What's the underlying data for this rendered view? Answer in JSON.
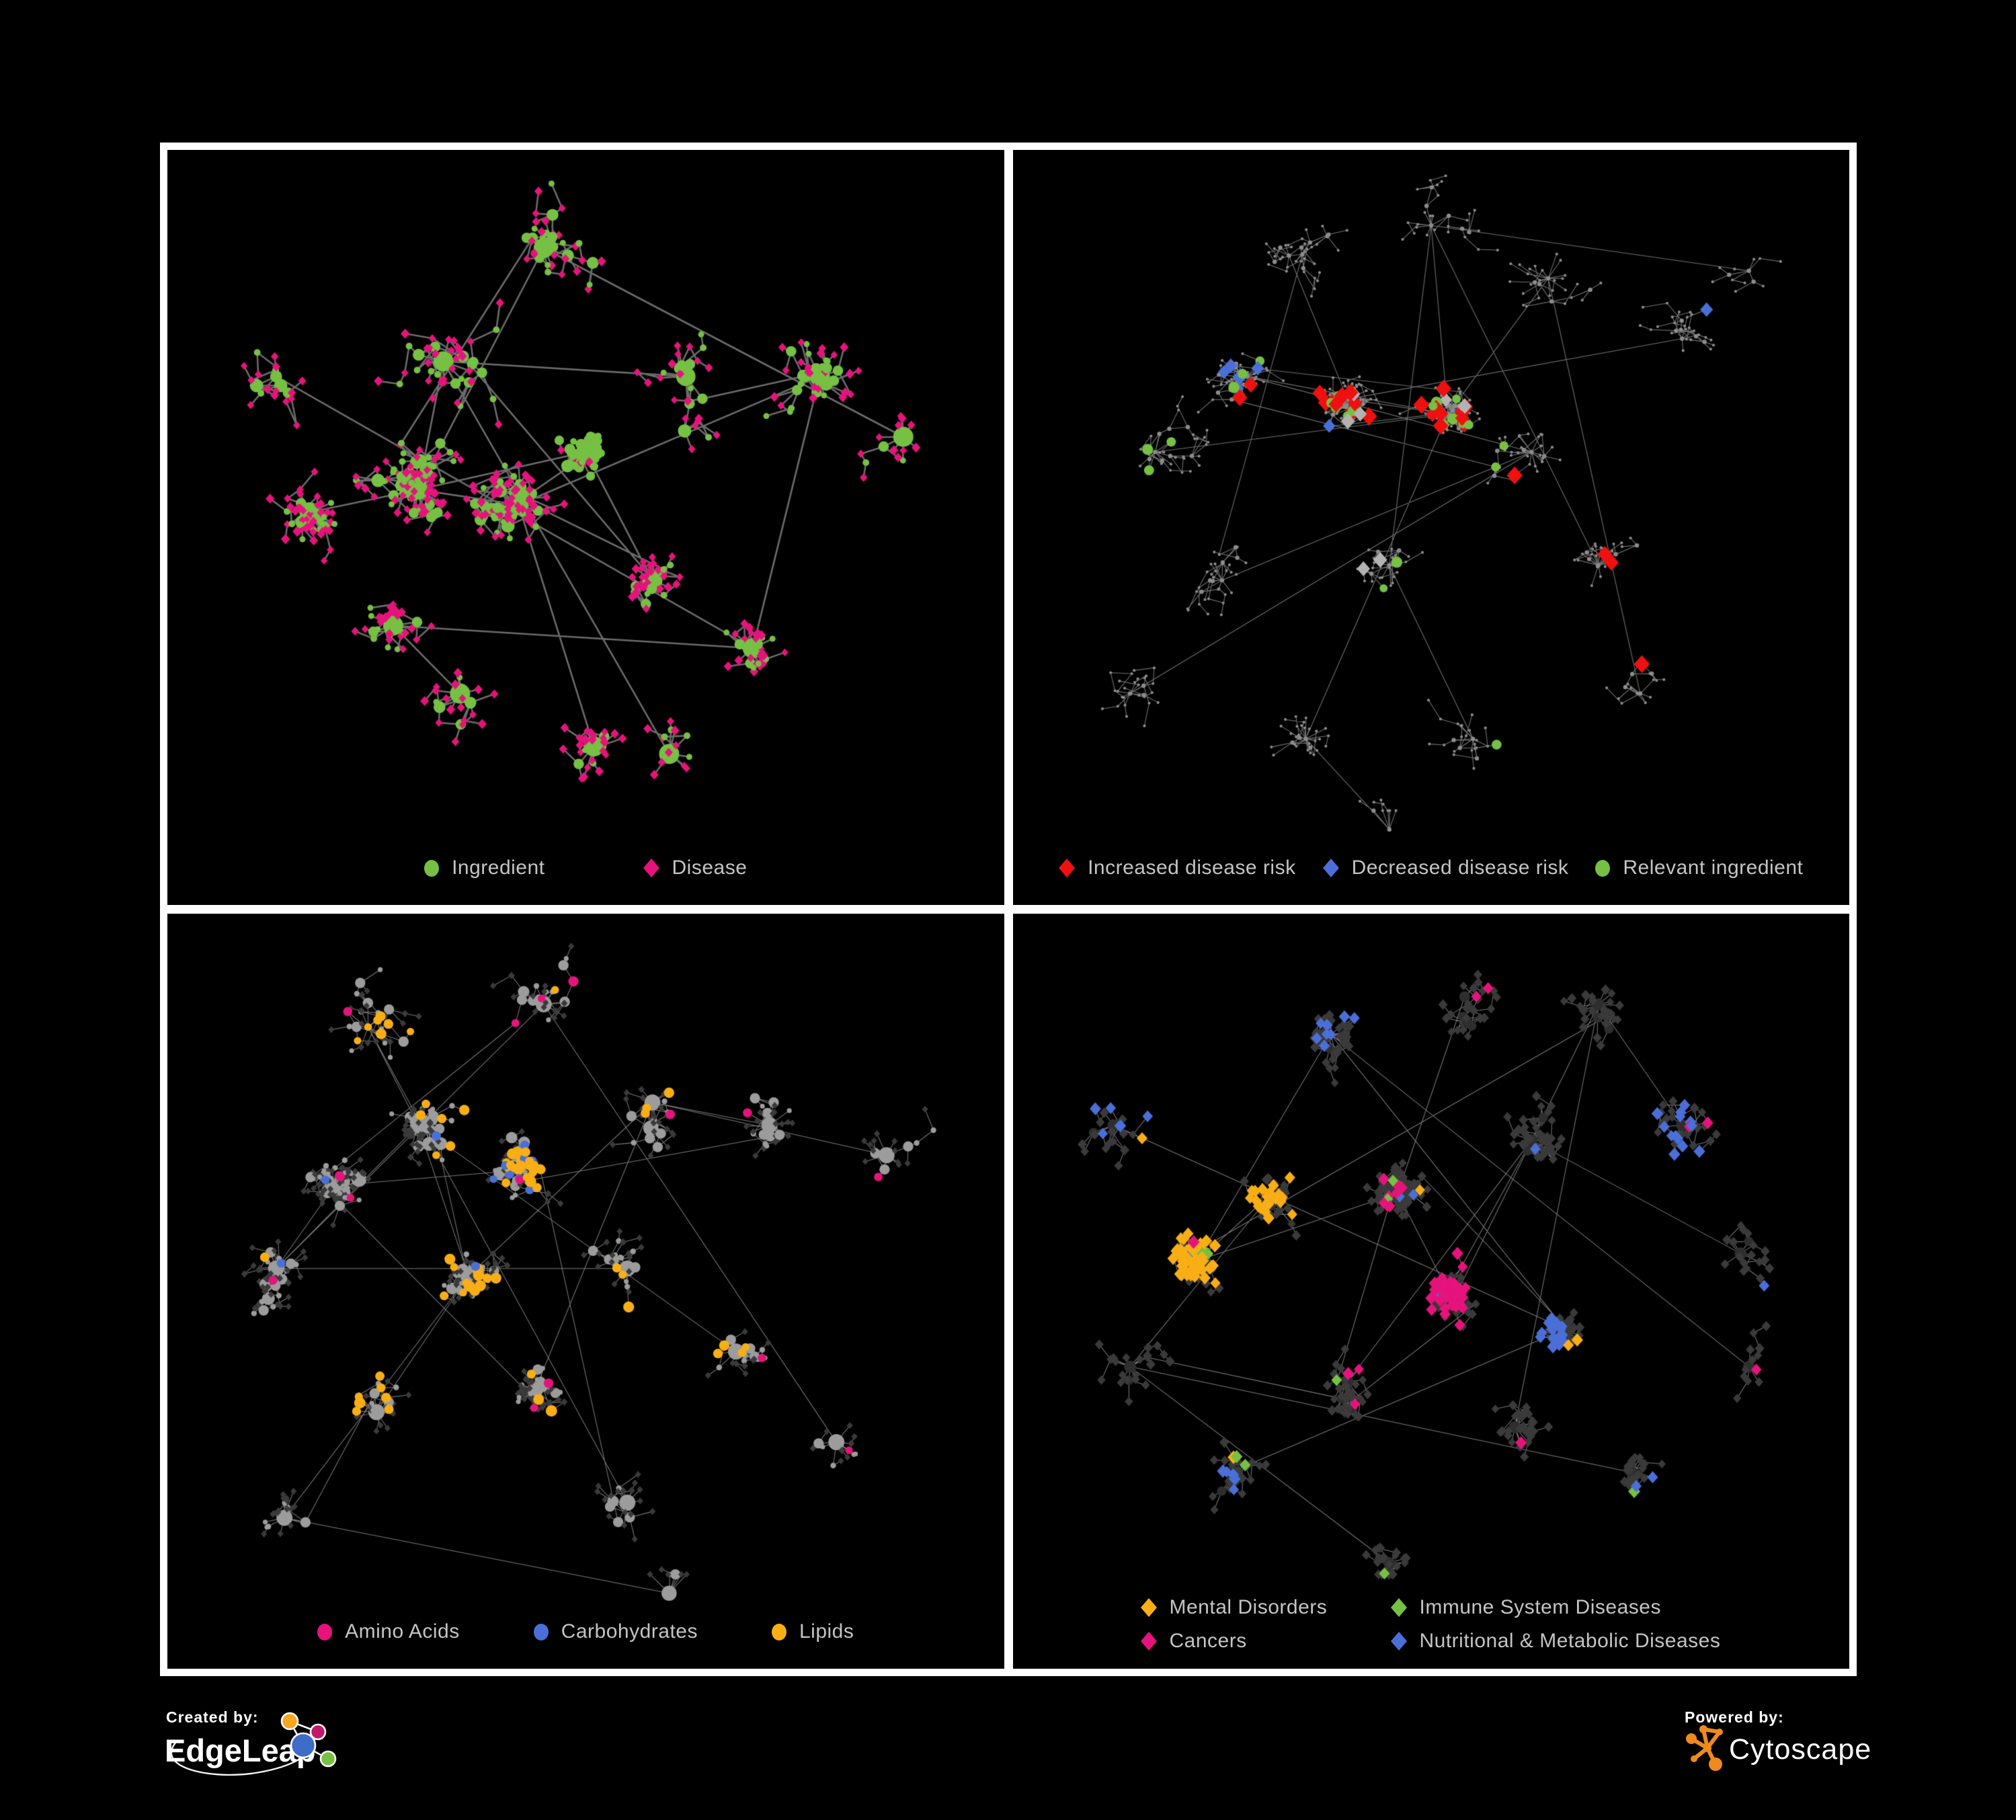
{
  "figure": {
    "background": "#000000",
    "frame_color": "#FFFFFF",
    "description": "Four-panel nutrient-disease network figure"
  },
  "colors": {
    "green": "#76C043",
    "pink": "#E6137C",
    "red": "#F01010",
    "blue": "#4A6FD8",
    "amber": "#F9AE15",
    "gray_node": "#9C9C9C",
    "tiny_gray": "#8C8C8C",
    "gray_diamond": "#B3B3B3",
    "dark_diamond": "#3A3A3A",
    "dark_circle": "#2E2E2E",
    "edge_bold": "#7A7A7A",
    "edge_thin": "#8A8A8A",
    "legend_text": "#C4C4C4"
  },
  "panels": [
    {
      "id": "p1",
      "name": "ingredient-disease-network",
      "legend": [
        {
          "label": "Ingredient",
          "shape": "circle",
          "color": "#76C043"
        },
        {
          "label": "Disease",
          "shape": "diamond",
          "color": "#E6137C"
        }
      ]
    },
    {
      "id": "p2",
      "name": "disease-risk-network",
      "legend": [
        {
          "label": "Increased disease risk",
          "shape": "diamond",
          "color": "#F01010"
        },
        {
          "label": "Decreased disease risk",
          "shape": "diamond",
          "color": "#4A6FD8"
        },
        {
          "label": "Relevant ingredient",
          "shape": "circle",
          "color": "#76C043"
        }
      ]
    },
    {
      "id": "p3",
      "name": "nutrient-class-network",
      "legend": [
        {
          "label": "Amino Acids",
          "shape": "circle",
          "color": "#E6137C"
        },
        {
          "label": "Carbohydrates",
          "shape": "circle",
          "color": "#4A6FD8"
        },
        {
          "label": "Lipids",
          "shape": "circle",
          "color": "#F9AE15"
        }
      ]
    },
    {
      "id": "p4",
      "name": "disease-class-network",
      "legend": [
        {
          "label": "Mental Disorders",
          "shape": "diamond",
          "color": "#F9AE15"
        },
        {
          "label": "Immune System Diseases",
          "shape": "diamond",
          "color": "#76C043"
        },
        {
          "label": "Cancers",
          "shape": "diamond",
          "color": "#E6137C"
        },
        {
          "label": "Nutritional & Metabolic Diseases",
          "shape": "diamond",
          "color": "#4A6FD8"
        }
      ]
    }
  ],
  "footer": {
    "created_by": {
      "label": "Created by:",
      "brand": "EdgeLeap"
    },
    "powered_by": {
      "label": "Powered by:",
      "brand": "Cytoscape",
      "logo_color": "#EF8A1E"
    }
  }
}
